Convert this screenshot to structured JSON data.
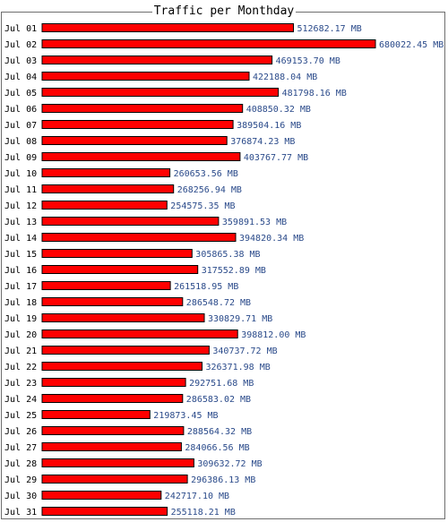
{
  "colors": {
    "bar": "#ff0000",
    "bar_border": "#000000",
    "value_text": "#2a4a8a",
    "frame": "#6e6e6e"
  },
  "chart_data": {
    "type": "bar",
    "orientation": "horizontal",
    "title": "Traffic per Monthday",
    "unit": "MB",
    "categories": [
      "Jul 01",
      "Jul 02",
      "Jul 03",
      "Jul 04",
      "Jul 05",
      "Jul 06",
      "Jul 07",
      "Jul 08",
      "Jul 09",
      "Jul 10",
      "Jul 11",
      "Jul 12",
      "Jul 13",
      "Jul 14",
      "Jul 15",
      "Jul 16",
      "Jul 17",
      "Jul 18",
      "Jul 19",
      "Jul 20",
      "Jul 21",
      "Jul 22",
      "Jul 23",
      "Jul 24",
      "Jul 25",
      "Jul 26",
      "Jul 27",
      "Jul 28",
      "Jul 29",
      "Jul 30",
      "Jul 31"
    ],
    "values": [
      512682.17,
      680022.45,
      469153.7,
      422188.04,
      481798.16,
      408850.32,
      389504.16,
      376874.23,
      403767.77,
      260653.56,
      268256.94,
      254575.35,
      359891.53,
      394820.34,
      305865.38,
      317552.89,
      261518.95,
      286548.72,
      330829.71,
      398812.0,
      340737.72,
      326371.98,
      292751.68,
      286583.02,
      219873.45,
      288564.32,
      284066.56,
      309632.72,
      296386.13,
      242717.1,
      255118.21
    ],
    "value_labels": [
      "512682.17 MB",
      "680022.45 MB",
      "469153.70 MB",
      "422188.04 MB",
      "481798.16 MB",
      "408850.32 MB",
      "389504.16 MB",
      "376874.23 MB",
      "403767.77 MB",
      "260653.56 MB",
      "268256.94 MB",
      "254575.35 MB",
      "359891.53 MB",
      "394820.34 MB",
      "305865.38 MB",
      "317552.89 MB",
      "261518.95 MB",
      "286548.72 MB",
      "330829.71 MB",
      "398812.00 MB",
      "340737.72 MB",
      "326371.98 MB",
      "292751.68 MB",
      "286583.02 MB",
      "219873.45 MB",
      "288564.32 MB",
      "284066.56 MB",
      "309632.72 MB",
      "296386.13 MB",
      "242717.10 MB",
      "255118.21 MB"
    ]
  }
}
